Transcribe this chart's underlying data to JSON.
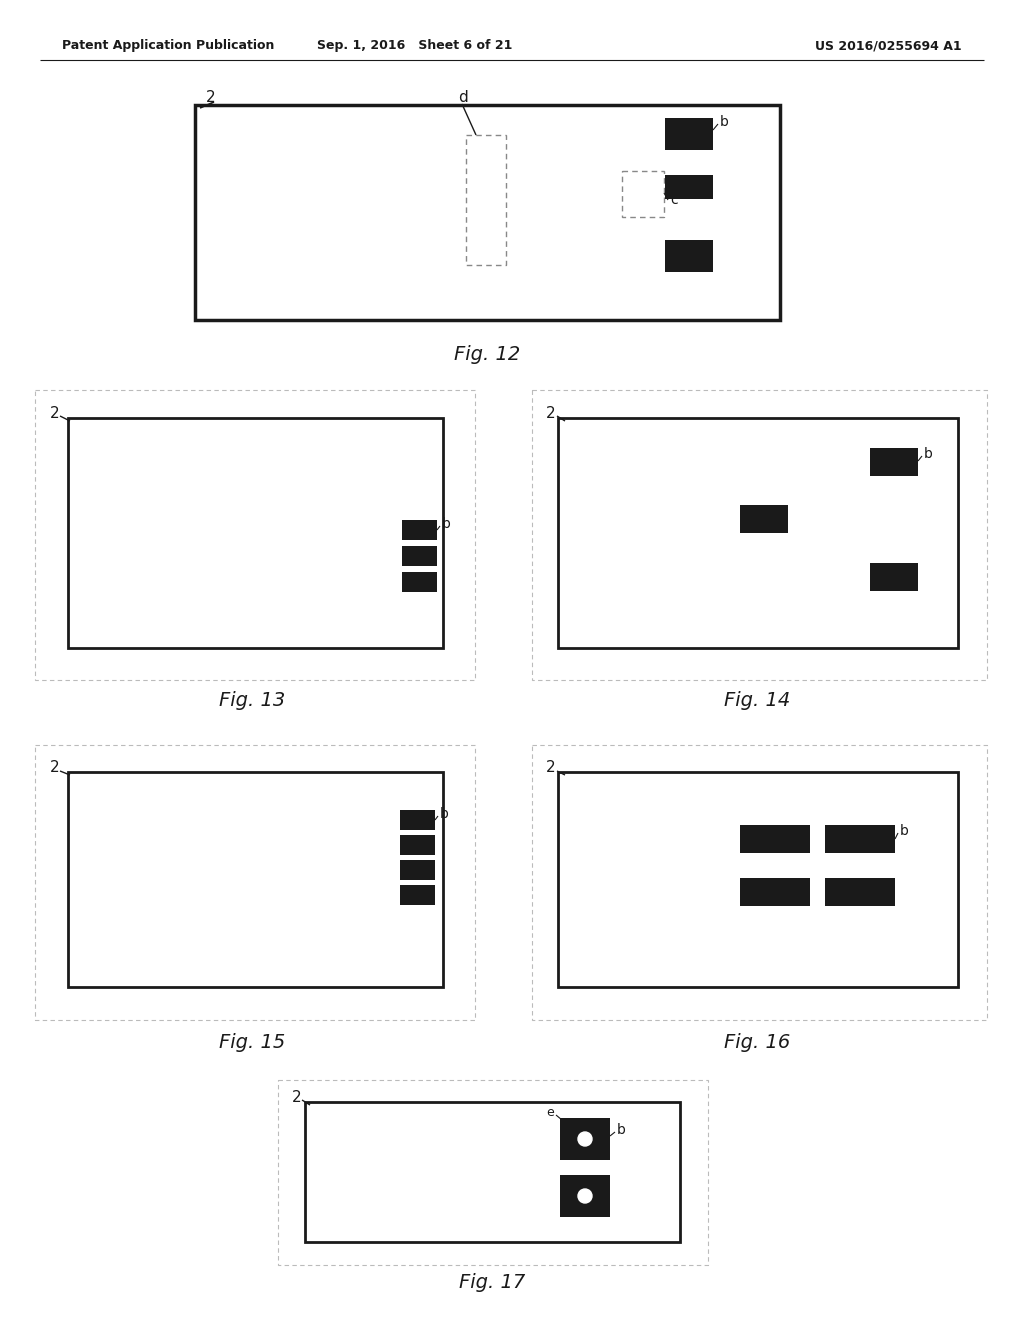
{
  "bg_color": "#ffffff",
  "header_left": "Patent Application Publication",
  "header_center": "Sep. 1, 2016   Sheet 6 of 21",
  "header_right": "US 2016/0255694 A1",
  "fig12_caption": "Fig. 12",
  "fig13_caption": "Fig. 13",
  "fig14_caption": "Fig. 14",
  "fig15_caption": "Fig. 15",
  "fig16_caption": "Fig. 16",
  "fig17_caption": "Fig. 17"
}
